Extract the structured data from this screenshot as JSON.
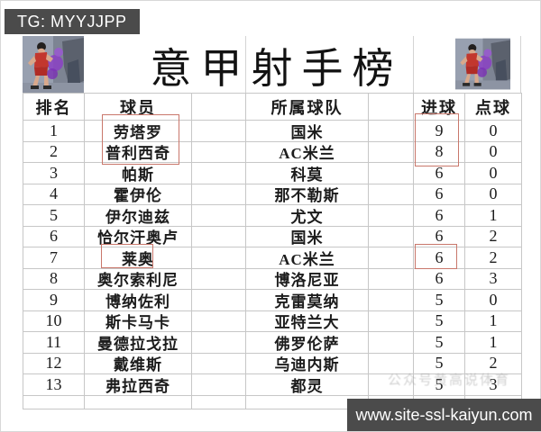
{
  "badges": {
    "tg": "TG: MYYJJPP",
    "site": "www.site-ssl-kaiyun.com"
  },
  "title": "意甲射手榜",
  "table": {
    "headers": {
      "rank": "排名",
      "player": "球员",
      "team": "所属球队",
      "goals": "进球",
      "penalties": "点球"
    },
    "rows": [
      {
        "rank": "1",
        "player": "劳塔罗",
        "team": "国米",
        "goals": "9",
        "penalties": "0"
      },
      {
        "rank": "2",
        "player": "普利西奇",
        "team": "AC米兰",
        "goals": "8",
        "penalties": "0"
      },
      {
        "rank": "3",
        "player": "帕斯",
        "team": "科莫",
        "goals": "6",
        "penalties": "0"
      },
      {
        "rank": "4",
        "player": "霍伊伦",
        "team": "那不勒斯",
        "goals": "6",
        "penalties": "0"
      },
      {
        "rank": "5",
        "player": "伊尔迪兹",
        "team": "尤文",
        "goals": "6",
        "penalties": "1"
      },
      {
        "rank": "6",
        "player": "恰尔汗奥卢",
        "team": "国米",
        "goals": "6",
        "penalties": "2"
      },
      {
        "rank": "7",
        "player": "莱奥",
        "team": "AC米兰",
        "goals": "6",
        "penalties": "2"
      },
      {
        "rank": "8",
        "player": "奥尔索利尼",
        "team": "博洛尼亚",
        "goals": "6",
        "penalties": "3"
      },
      {
        "rank": "9",
        "player": "博纳佐利",
        "team": "克雷莫纳",
        "goals": "5",
        "penalties": "0"
      },
      {
        "rank": "10",
        "player": "斯卡马卡",
        "team": "亚特兰大",
        "goals": "5",
        "penalties": "1"
      },
      {
        "rank": "11",
        "player": "曼德拉戈拉",
        "team": "佛罗伦萨",
        "goals": "5",
        "penalties": "1"
      },
      {
        "rank": "12",
        "player": "戴维斯",
        "team": "乌迪内斯",
        "goals": "5",
        "penalties": "2"
      },
      {
        "rank": "13",
        "player": "弗拉西奇",
        "team": "都灵",
        "goals": "5",
        "penalties": "3"
      }
    ]
  },
  "annotations": {
    "boxed_players": [
      "劳塔罗",
      "普利西奇",
      "莱奥"
    ],
    "boxed_goals": [
      "9",
      "8",
      "6"
    ]
  },
  "watermark": "公众号黄高说体育",
  "colors": {
    "badge_bg": "#4b4b4b",
    "highlight_box": "#c9776b",
    "gridline": "#c7c7c7"
  }
}
